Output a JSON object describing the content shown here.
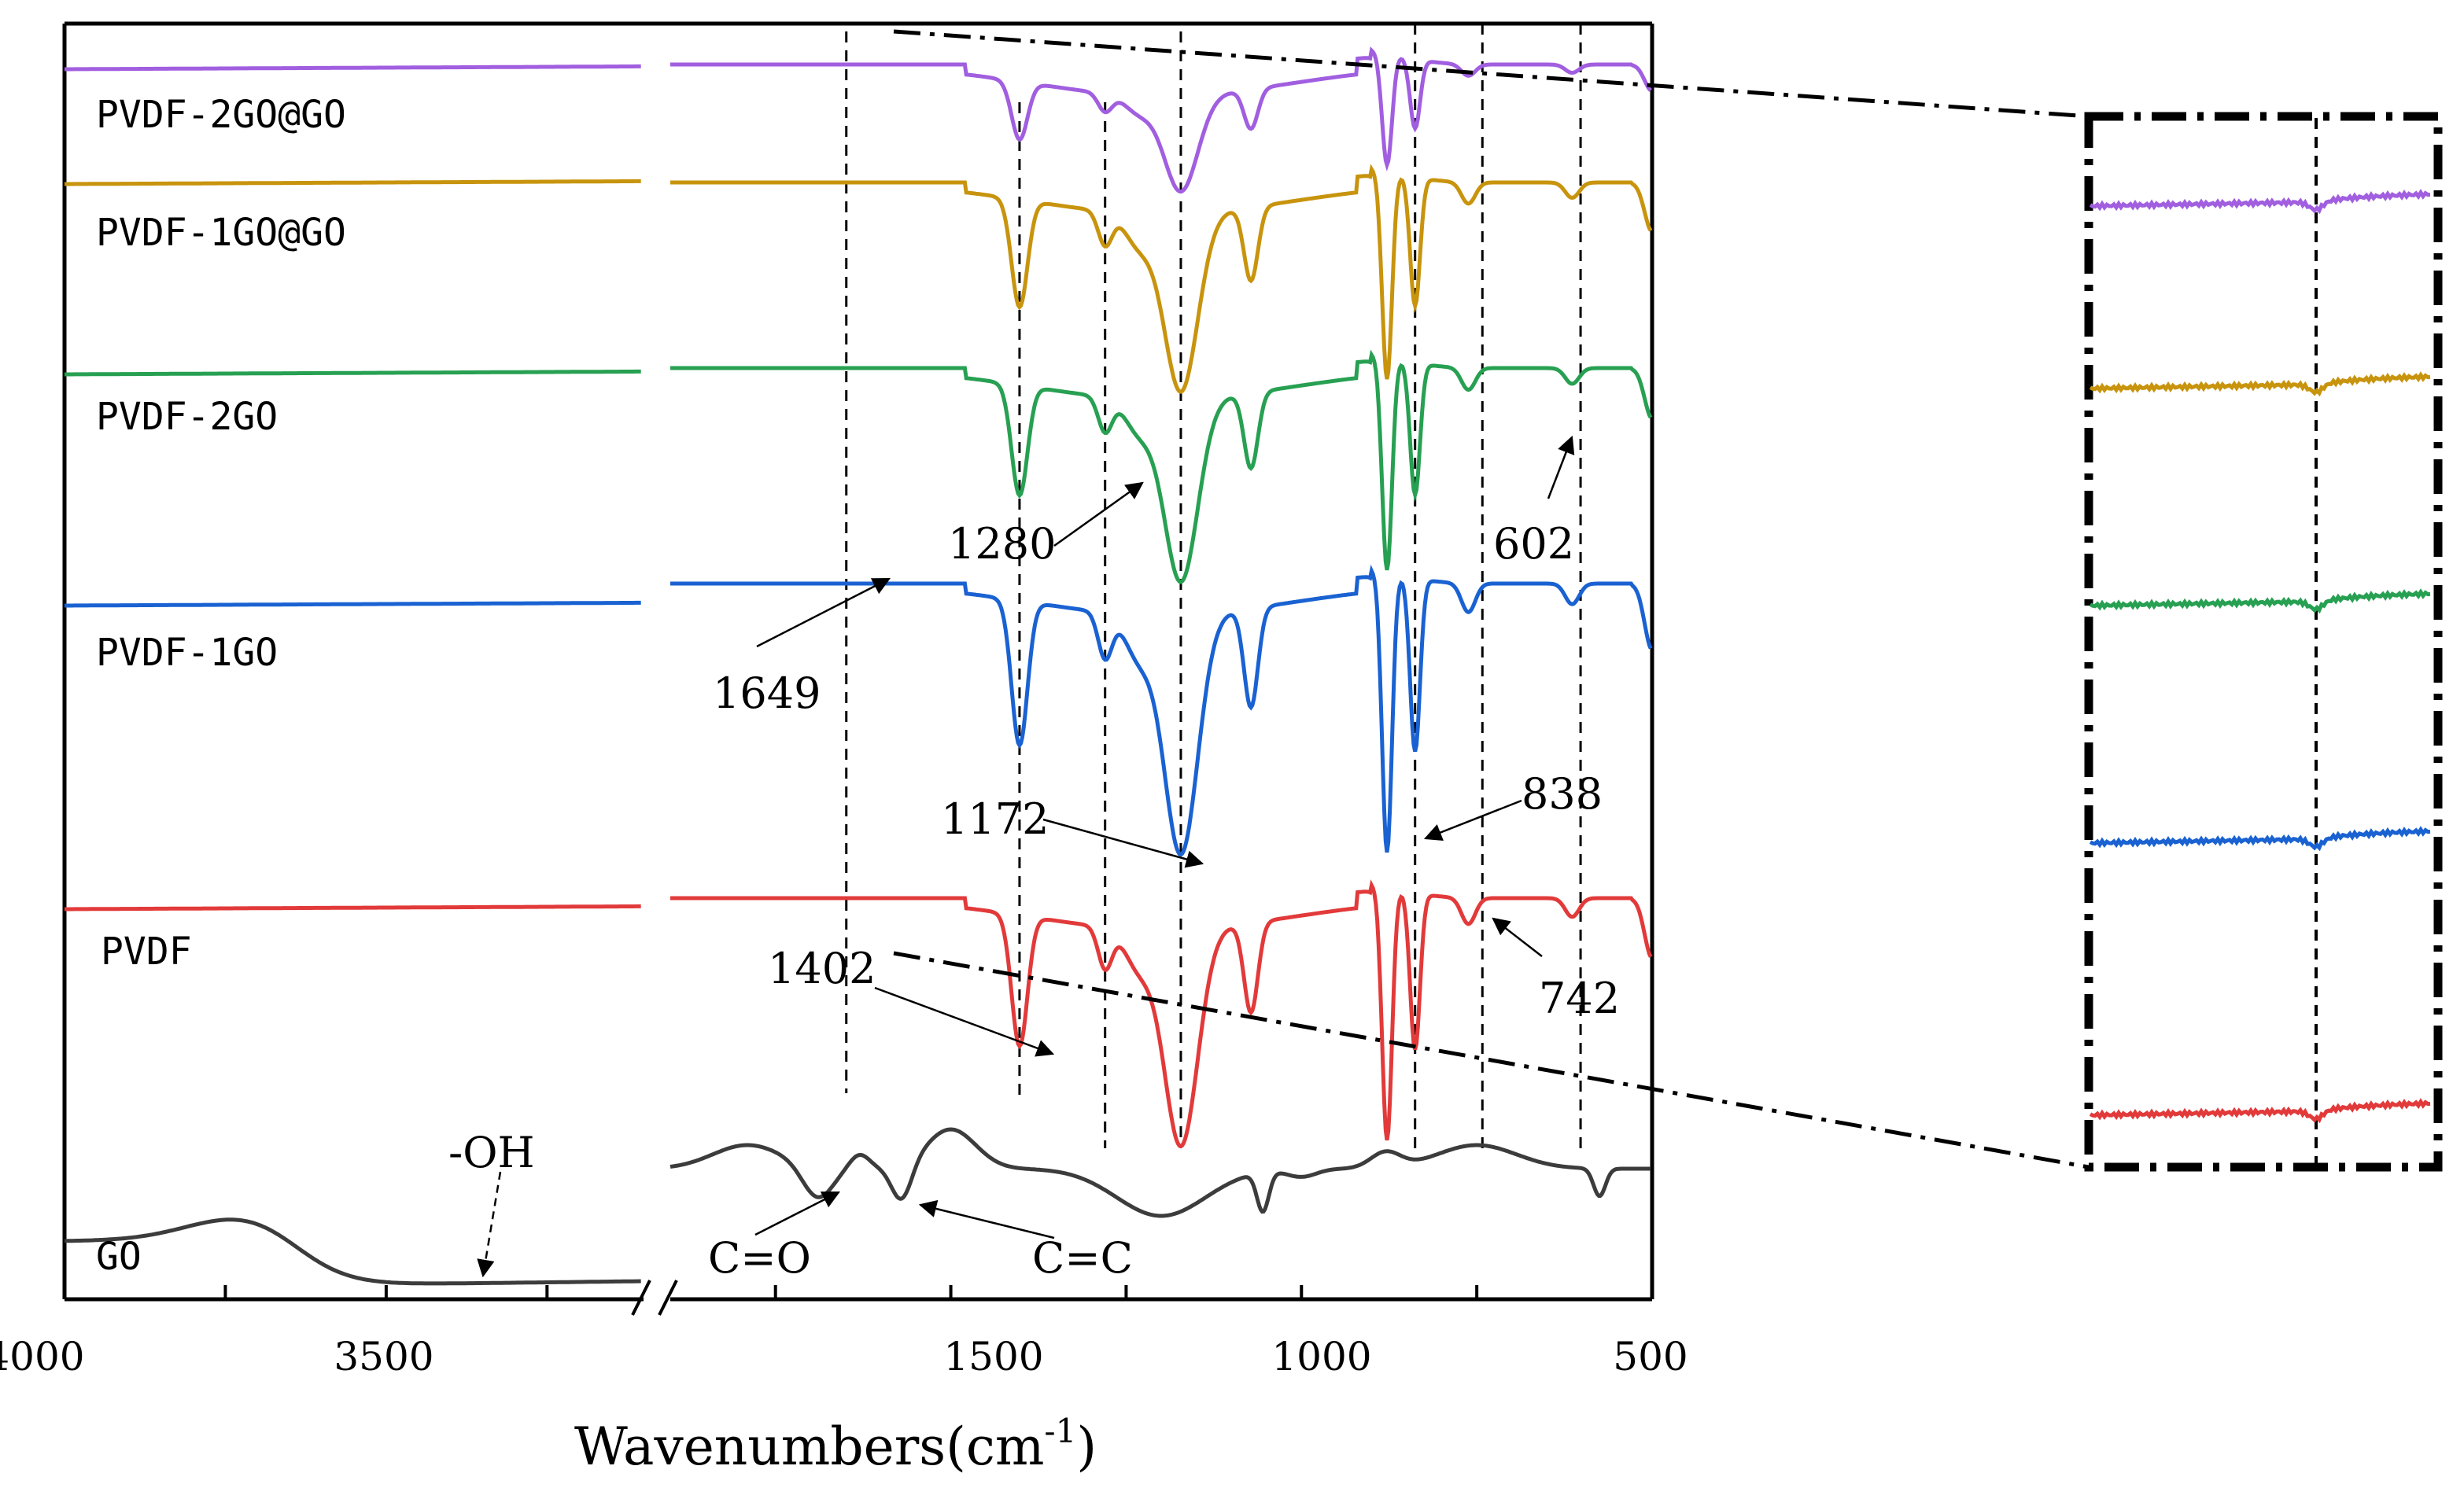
{
  "chart_data": {
    "type": "line",
    "title": "",
    "xlabel": "Wavenumbers(cm",
    "xlabel_sup": "-1",
    "xlabel_close": ")",
    "x_tick_labels": [
      "4000",
      "3500",
      "1500",
      "1000",
      "500"
    ],
    "x_segments": [
      {
        "from": 4000,
        "to": 3100
      },
      {
        "from": 1900,
        "to": 500
      }
    ],
    "legend_position": "left, next to each curve",
    "series": [
      {
        "name": "PVDF-2GO@GO",
        "color": "#a15fe0"
      },
      {
        "name": "PVDF-1GO@GO",
        "color": "#c8940e"
      },
      {
        "name": "PVDF-2GO",
        "color": "#27a052"
      },
      {
        "name": "PVDF-1GO",
        "color": "#1a62d2"
      },
      {
        "name": "PVDF",
        "color": "#e23a3a"
      },
      {
        "name": "GO",
        "color": "#3c3c3c"
      }
    ],
    "reference_lines_wavenumber": [
      1649,
      1402,
      1280,
      1172,
      838,
      742,
      602
    ],
    "peak_annotations": [
      {
        "text": "1280"
      },
      {
        "text": "602"
      },
      {
        "text": "1649"
      },
      {
        "text": "1172"
      },
      {
        "text": "838"
      },
      {
        "text": "1402"
      },
      {
        "text": "742"
      },
      {
        "text": "-OH"
      },
      {
        "text": "C=O"
      },
      {
        "text": "C=C"
      }
    ],
    "inset": {
      "description": "magnified view of the 1649 region for each curve"
    }
  }
}
